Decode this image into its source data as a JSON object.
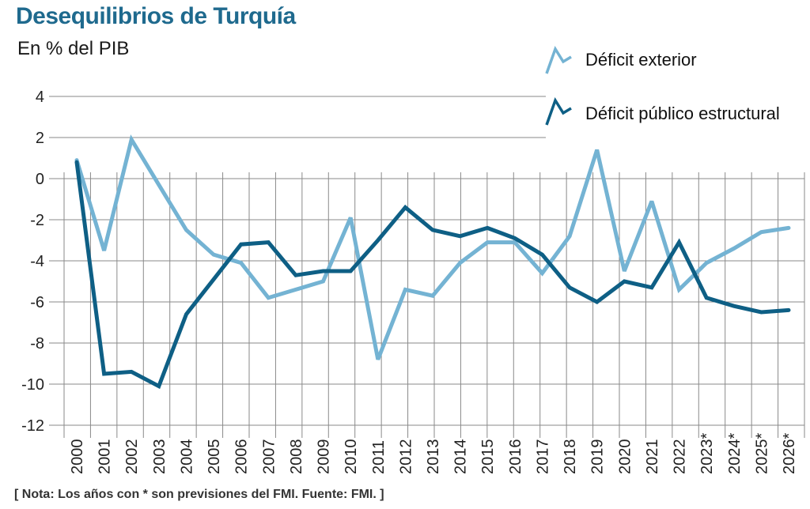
{
  "header": {
    "title": "Desequilibrios de Turquía",
    "subtitle": "En % del PIB"
  },
  "footer": {
    "note": "[ Nota: Los años con * son previsiones del FMI. Fuente: FMI. ]"
  },
  "colors": {
    "exterior": "#74b3d3",
    "estructural": "#0e5f85",
    "grid": "#8a8a8a",
    "title": "#1f6a8e"
  },
  "chart_data": {
    "type": "line",
    "title": "Desequilibrios de Turquía",
    "subtitle": "En % del PIB",
    "xlabel": "",
    "ylabel": "",
    "ylim": [
      -12,
      4
    ],
    "yticks": [
      "4",
      "2",
      "0",
      "-2",
      "-4",
      "-6",
      "-8",
      "-10",
      "-12"
    ],
    "ytick_values": [
      4,
      2,
      0,
      -2,
      -4,
      -6,
      -8,
      -10,
      -12
    ],
    "grid": true,
    "legend_position": "top-right",
    "categories": [
      "2000",
      "2001",
      "2002",
      "2003",
      "2004",
      "2005",
      "2006",
      "2007",
      "2008",
      "2009",
      "2010",
      "2011",
      "2012",
      "2013",
      "2014",
      "2015",
      "2016",
      "2017",
      "2018",
      "2019",
      "2020",
      "2021",
      "2022",
      "2023*",
      "2024*",
      "2025*",
      "2026*"
    ],
    "series": [
      {
        "name": "Déficit exterior",
        "color": "#74b3d3",
        "values": [
          0.9,
          -3.5,
          1.9,
          -0.3,
          -2.5,
          -3.7,
          -4.1,
          -5.8,
          -5.4,
          -5.0,
          -1.9,
          -8.8,
          -5.4,
          -5.7,
          -4.1,
          -3.1,
          -3.1,
          -4.6,
          -2.8,
          1.4,
          -4.5,
          -1.1,
          -5.4,
          -4.1,
          -3.4,
          -2.6,
          -2.4
        ]
      },
      {
        "name": "Déficit público estructural",
        "color": "#0e5f85",
        "values": [
          0.8,
          -9.5,
          -9.4,
          -10.1,
          -6.6,
          -4.9,
          -3.2,
          -3.1,
          -4.7,
          -4.5,
          -4.5,
          -3.0,
          -1.4,
          -2.5,
          -2.8,
          -2.4,
          -2.9,
          -3.7,
          -5.3,
          -6.0,
          -5.0,
          -5.3,
          -3.1,
          -5.8,
          -6.2,
          -6.5,
          -6.4
        ]
      }
    ]
  }
}
